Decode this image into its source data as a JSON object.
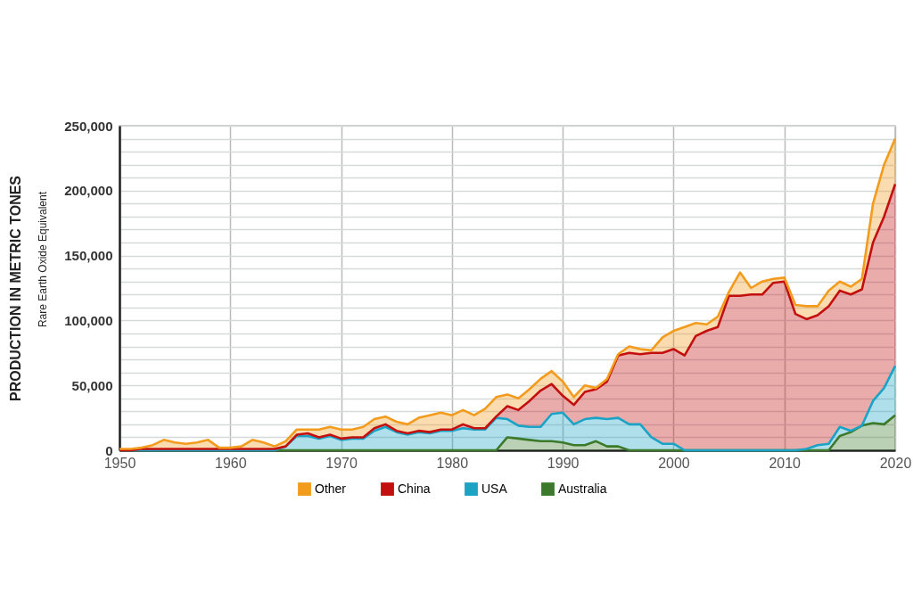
{
  "chart_data": {
    "type": "area",
    "stacked": true,
    "ylabel": "PRODUCTION IN METRIC TONES",
    "annotations": [
      "Rare Earth Oxide Equivalent"
    ],
    "x": [
      1950,
      1951,
      1952,
      1953,
      1954,
      1955,
      1956,
      1957,
      1958,
      1959,
      1960,
      1961,
      1962,
      1963,
      1964,
      1965,
      1966,
      1967,
      1968,
      1969,
      1970,
      1971,
      1972,
      1973,
      1974,
      1975,
      1976,
      1977,
      1978,
      1979,
      1980,
      1981,
      1982,
      1983,
      1984,
      1985,
      1986,
      1987,
      1988,
      1989,
      1990,
      1991,
      1992,
      1993,
      1994,
      1995,
      1996,
      1997,
      1998,
      1999,
      2000,
      2001,
      2002,
      2003,
      2004,
      2005,
      2006,
      2007,
      2008,
      2009,
      2010,
      2011,
      2012,
      2013,
      2014,
      2015,
      2016,
      2017,
      2018,
      2019,
      2020
    ],
    "series": [
      {
        "name": "Australia",
        "color": "#3b7a2a",
        "values": [
          0,
          0,
          0,
          0,
          0,
          0,
          0,
          0,
          0,
          0,
          0,
          0,
          0,
          0,
          0,
          0,
          0,
          0,
          0,
          0,
          0,
          0,
          0,
          0,
          0,
          0,
          0,
          0,
          0,
          0,
          0,
          0,
          0,
          0,
          0,
          10000,
          9000,
          8000,
          7000,
          7000,
          6000,
          4000,
          4000,
          7000,
          3000,
          3000,
          0,
          0,
          0,
          0,
          0,
          0,
          0,
          0,
          0,
          0,
          0,
          0,
          0,
          0,
          0,
          0,
          0,
          0,
          0,
          11000,
          14000,
          19000,
          21000,
          20000,
          27000
        ]
      },
      {
        "name": "USA",
        "color": "#1ba3c6",
        "values": [
          0,
          0,
          0,
          0,
          0,
          0,
          0,
          0,
          0,
          0,
          0,
          0,
          0,
          0,
          0,
          3000,
          11000,
          11000,
          9000,
          11000,
          8000,
          9000,
          9000,
          15000,
          18000,
          14000,
          12000,
          14000,
          13000,
          15000,
          15000,
          17000,
          16000,
          16000,
          25000,
          14000,
          10000,
          10000,
          11000,
          21000,
          23000,
          16000,
          20000,
          18000,
          21000,
          22000,
          20000,
          20000,
          10000,
          5000,
          5000,
          0,
          0,
          0,
          0,
          0,
          0,
          0,
          0,
          0,
          0,
          0,
          1000,
          4000,
          5000,
          7000,
          1000,
          0,
          17000,
          28000,
          38000
        ]
      },
      {
        "name": "China",
        "color": "#c40f0f",
        "values": [
          0,
          0,
          1000,
          1000,
          1000,
          1000,
          1000,
          1000,
          1000,
          1000,
          1000,
          1000,
          1000,
          1000,
          1000,
          0,
          1000,
          2000,
          1000,
          1000,
          1000,
          1000,
          1000,
          2000,
          2000,
          1000,
          1000,
          1000,
          1000,
          1000,
          1000,
          3000,
          1000,
          1000,
          1000,
          10000,
          12000,
          20000,
          28000,
          23000,
          13000,
          15000,
          21000,
          22000,
          29000,
          48000,
          55000,
          54000,
          65000,
          70000,
          73000,
          73000,
          88000,
          92000,
          95000,
          119000,
          119000,
          120000,
          120000,
          129000,
          130000,
          105000,
          100000,
          100000,
          106000,
          105000,
          105000,
          105000,
          122000,
          132000,
          140000
        ]
      },
      {
        "name": "Other",
        "color": "#f39b1c",
        "values": [
          1000,
          1000,
          1000,
          3000,
          7000,
          5000,
          4000,
          5000,
          7000,
          1000,
          1000,
          2000,
          7000,
          5000,
          2000,
          4000,
          4000,
          3000,
          6000,
          6000,
          7000,
          6000,
          8000,
          7000,
          6000,
          7000,
          7000,
          10000,
          13000,
          13000,
          11000,
          11000,
          10000,
          15000,
          15000,
          9000,
          9000,
          9000,
          9000,
          10000,
          11000,
          6000,
          5000,
          1000,
          2000,
          1000,
          5000,
          4000,
          2000,
          12000,
          14000,
          22000,
          10000,
          5000,
          8000,
          3000,
          18000,
          5000,
          10000,
          3000,
          3000,
          7000,
          10000,
          7000,
          12000,
          7000,
          6000,
          8000,
          30000,
          40000,
          35000
        ]
      }
    ],
    "xlim": [
      1950,
      2020
    ],
    "xticks": [
      1950,
      1960,
      1970,
      1980,
      1990,
      2000,
      2010,
      2020
    ],
    "ylim": [
      0,
      250000
    ],
    "yticks": [
      {
        "value": 0,
        "label": "0"
      },
      {
        "value": 10000,
        "label": null
      },
      {
        "value": 20000,
        "label": null
      },
      {
        "value": 30000,
        "label": null
      },
      {
        "value": 40000,
        "label": null
      },
      {
        "value": 50000,
        "label": "50,000"
      },
      {
        "value": 60000,
        "label": null
      },
      {
        "value": 70000,
        "label": null
      },
      {
        "value": 80000,
        "label": null
      },
      {
        "value": 90000,
        "label": null
      },
      {
        "value": 100000,
        "label": "100,000"
      },
      {
        "value": 110000,
        "label": null
      },
      {
        "value": 120000,
        "label": null
      },
      {
        "value": 130000,
        "label": null
      },
      {
        "value": 140000,
        "label": null
      },
      {
        "value": 150000,
        "label": "150,000"
      },
      {
        "value": 160000,
        "label": null
      },
      {
        "value": 170000,
        "label": null
      },
      {
        "value": 180000,
        "label": null
      },
      {
        "value": 190000,
        "label": null
      },
      {
        "value": 200000,
        "label": "200,000"
      },
      {
        "value": 210000,
        "label": null
      },
      {
        "value": 220000,
        "label": null
      },
      {
        "value": 230000,
        "label": null
      },
      {
        "value": 240000,
        "label": null
      },
      {
        "value": 250000,
        "label": "250,000"
      }
    ],
    "grid": true,
    "legend": "bottom",
    "marker": "none",
    "line_style": "solid"
  }
}
